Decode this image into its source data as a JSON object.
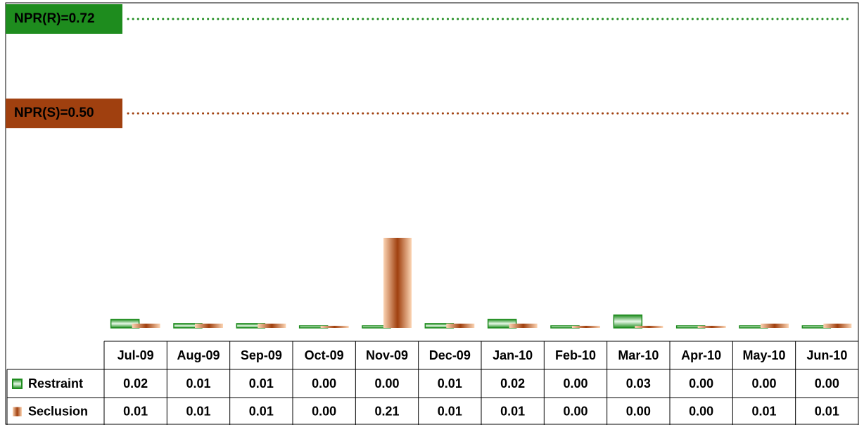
{
  "chart_data": {
    "type": "bar",
    "categories": [
      "Jul-09",
      "Aug-09",
      "Sep-09",
      "Oct-09",
      "Nov-09",
      "Dec-09",
      "Jan-10",
      "Feb-10",
      "Mar-10",
      "Apr-10",
      "May-10",
      "Jun-10"
    ],
    "series": [
      {
        "name": "Restraint",
        "color": "#1e8c1e",
        "values": [
          0.02,
          0.01,
          0.01,
          0,
          0,
          0.01,
          0.02,
          0,
          0.03,
          0,
          0,
          0
        ],
        "value_labels": [
          "0.02",
          "0.01",
          "0.01",
          "0.00",
          "0.00",
          "0.01",
          "0.02",
          "0.00",
          "0.03",
          "0.00",
          "0.00",
          "0.00"
        ]
      },
      {
        "name": "Seclusion",
        "color": "#a0400f",
        "values": [
          0.01,
          0.01,
          0.01,
          0,
          0.21,
          0.01,
          0.01,
          0,
          0,
          0,
          0.01,
          0.01
        ],
        "value_labels": [
          "0.01",
          "0.01",
          "0.01",
          "0.00",
          "0.21",
          "0.01",
          "0.01",
          "0.00",
          "0.00",
          "0.00",
          "0.01",
          "0.01"
        ]
      }
    ],
    "reference_lines": [
      {
        "label": "NPR(R)=0.72",
        "value": 0.72,
        "color": "#1e8c1e",
        "text_color": "#ffffff"
      },
      {
        "label": "NPR(S)=0.50",
        "value": 0.5,
        "color": "#a0400f",
        "text_color": "#fcd5b4"
      }
    ]
  }
}
